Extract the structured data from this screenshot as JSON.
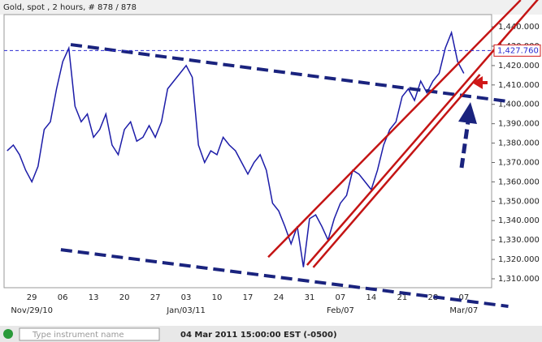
{
  "header": "Gold, spot , 2 hours, # 878 / 878",
  "search_placeholder": "Type instrument name",
  "status": "04 Mar 2011 15:00:00  EST (-0500)",
  "chart_data": {
    "type": "line",
    "color": "#1c1ca8",
    "categories": [
      null,
      null,
      null,
      null,
      "29",
      null,
      null,
      null,
      null,
      "06",
      null,
      null,
      null,
      null,
      "13",
      null,
      null,
      null,
      null,
      "20",
      null,
      null,
      null,
      null,
      "27",
      null,
      null,
      null,
      null,
      "03",
      null,
      null,
      null,
      null,
      "10",
      null,
      null,
      null,
      null,
      "17",
      null,
      null,
      null,
      null,
      "24",
      null,
      null,
      null,
      null,
      "31",
      null,
      null,
      null,
      null,
      "07",
      null,
      null,
      null,
      null,
      "14",
      null,
      null,
      null,
      null,
      "21",
      null,
      null,
      null,
      null,
      "28",
      null,
      null,
      null,
      null,
      "07",
      null,
      null,
      null,
      null
    ],
    "categories2": [
      null,
      null,
      null,
      null,
      "Nov/29/10",
      null,
      null,
      null,
      null,
      null,
      null,
      null,
      null,
      null,
      null,
      null,
      null,
      null,
      null,
      null,
      null,
      null,
      null,
      null,
      null,
      null,
      null,
      null,
      null,
      "Jan/03/11",
      null,
      null,
      null,
      null,
      null,
      null,
      null,
      null,
      null,
      null,
      null,
      null,
      null,
      null,
      null,
      null,
      null,
      null,
      null,
      null,
      null,
      null,
      null,
      null,
      "Feb/07",
      null,
      null,
      null,
      null,
      null,
      null,
      null,
      null,
      null,
      null,
      null,
      null,
      null,
      null,
      null,
      null,
      null,
      null,
      null,
      "Mar/07",
      null,
      null,
      null,
      null
    ],
    "values": [
      1376,
      1379,
      1374,
      1366,
      1360,
      1368,
      1387,
      1391,
      1408,
      1422,
      1429,
      1399,
      1391,
      1395,
      1383,
      1387,
      1395,
      1379,
      1374,
      1387,
      1391,
      1381,
      1383,
      1389,
      1383,
      1391,
      1408,
      1412,
      1416,
      1420,
      1414,
      1379,
      1370,
      1376,
      1374,
      1383,
      1379,
      1376,
      1370,
      1364,
      1370,
      1374,
      1366,
      1349,
      1345,
      1337,
      1328,
      1337,
      1316,
      1341,
      1343,
      1337,
      1330,
      1341,
      1349,
      1353,
      1366,
      1364,
      1360,
      1356,
      1366,
      1379,
      1387,
      1391,
      1404,
      1408,
      1402,
      1412,
      1406,
      1412,
      1416,
      1429,
      1437,
      1422,
      1416,
      null,
      null,
      null,
      null
    ],
    "ylim": [
      1305.4,
      1446.3
    ],
    "yticks": [
      {
        "value": 1310,
        "label": "1,310.000"
      },
      {
        "value": 1320,
        "label": "1,320.000"
      },
      {
        "value": 1330,
        "label": "1,330.000"
      },
      {
        "value": 1340,
        "label": "1,340.000"
      },
      {
        "value": 1350,
        "label": "1,350.000"
      },
      {
        "value": 1360,
        "label": "1,360.000"
      },
      {
        "value": 1370,
        "label": "1,370.000"
      },
      {
        "value": 1380,
        "label": "1,380.000"
      },
      {
        "value": 1390,
        "label": "1,390.000"
      },
      {
        "value": 1400,
        "label": "1,400.000"
      },
      {
        "value": 1410,
        "label": "1,410.000"
      },
      {
        "value": 1420,
        "label": "1,420.000"
      },
      {
        "value": 1430,
        "label": "1,430.000"
      },
      {
        "value": 1440,
        "label": "1,440.000"
      }
    ],
    "last_price": {
      "value": 1427.76,
      "label": "1,427.760"
    },
    "trendlines": [
      {
        "color": "#1a237e",
        "dashed": true,
        "points": [
          [
            10.3,
            1430.8
          ],
          [
            81.2,
            1401.5
          ]
        ]
      },
      {
        "color": "#1a237e",
        "dashed": true,
        "points": [
          [
            8.7,
            1325.0
          ],
          [
            81.2,
            1295.8
          ]
        ]
      },
      {
        "color": "#c41414",
        "dashed": false,
        "points": [
          [
            42.3,
            1321.2
          ],
          [
            83.2,
            1453.8
          ]
        ]
      },
      {
        "color": "#c41414",
        "dashed": false,
        "points": [
          [
            48.6,
            1317.1
          ],
          [
            86.7,
            1456.7
          ]
        ]
      },
      {
        "color": "#c41414",
        "dashed": false,
        "points": [
          [
            49.6,
            1315.9
          ],
          [
            76.6,
            1415.4
          ]
        ]
      }
    ]
  }
}
